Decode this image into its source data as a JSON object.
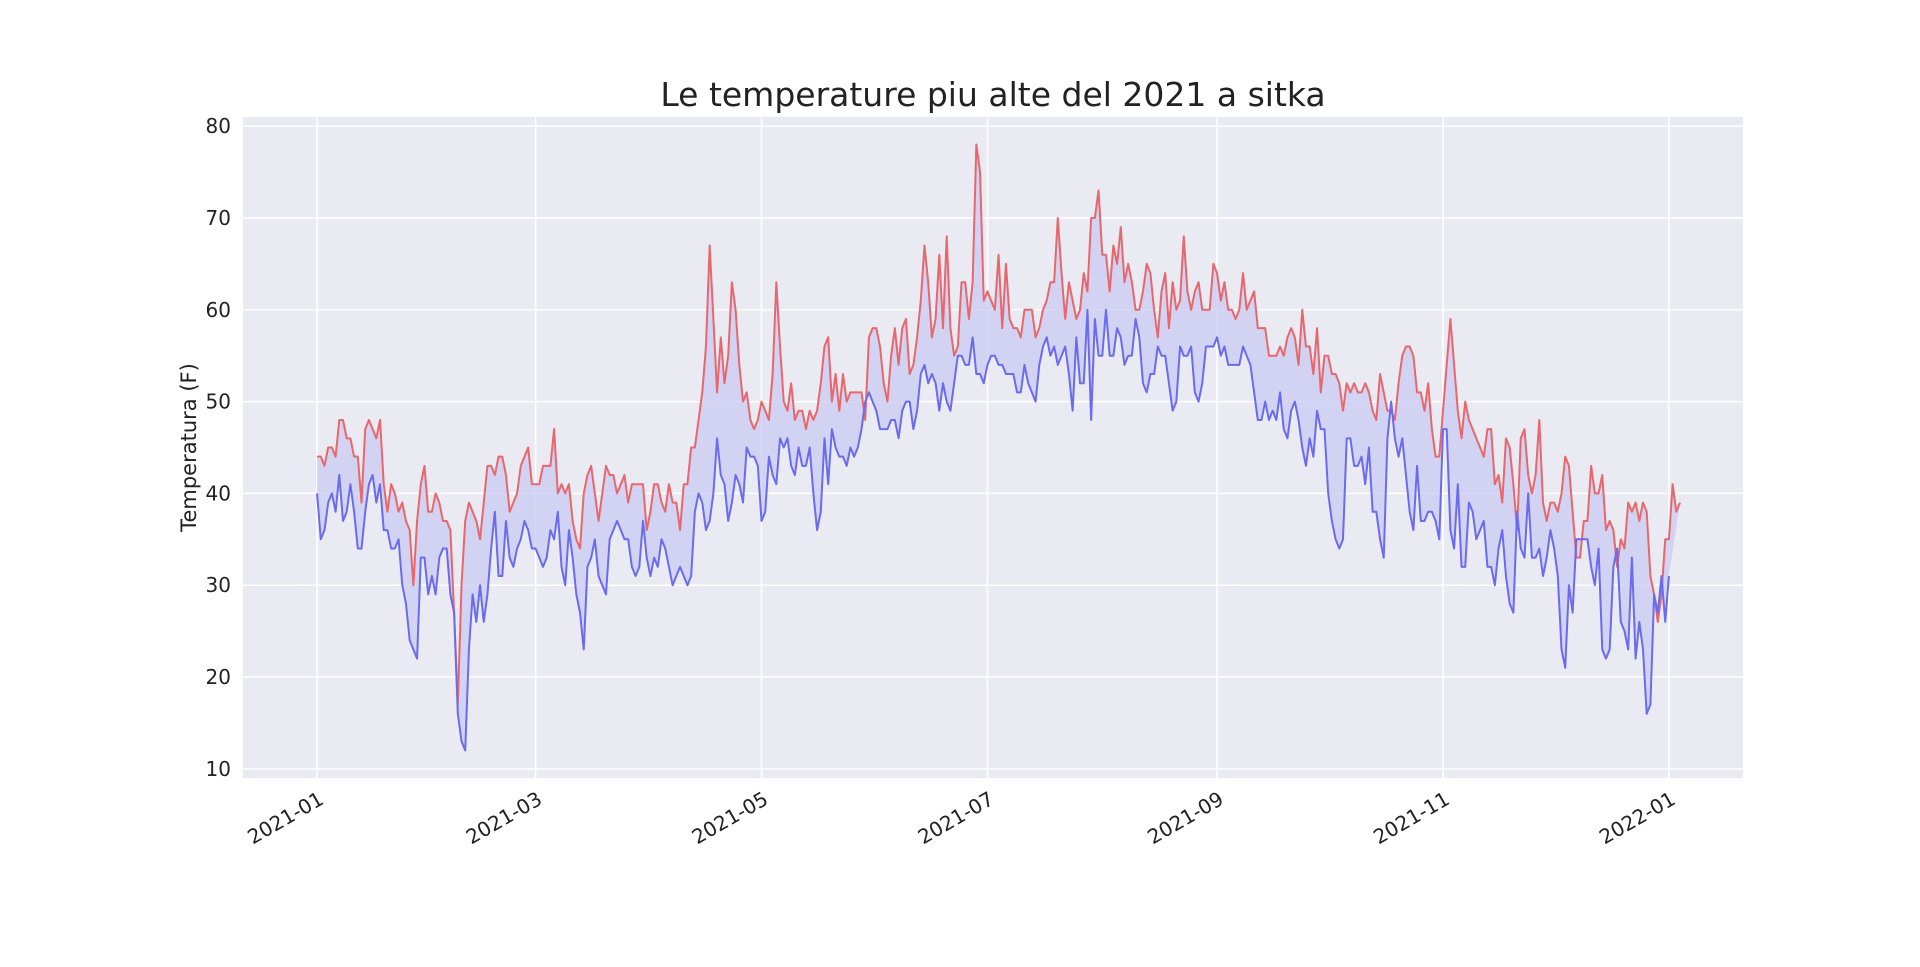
{
  "chart_data": {
    "type": "line",
    "title": "Le temperature piu alte del 2021 a sitka",
    "xlabel": "",
    "ylabel": "Temperatura (F)",
    "ylim": [
      9,
      81
    ],
    "xlim": [
      "2020-12-12",
      "2022-01-21"
    ],
    "x_ticks": [
      "2021-01",
      "2021-03",
      "2021-05",
      "2021-07",
      "2021-09",
      "2021-11",
      "2022-01"
    ],
    "y_ticks": [
      10,
      20,
      30,
      40,
      50,
      60,
      70,
      80
    ],
    "grid": true,
    "fill_between": true,
    "colors": {
      "high": "#e8676d",
      "low": "#6b6bef",
      "fill": "#c9c9f2",
      "plot_bg": "#eaeaf2",
      "grid": "#ffffff"
    },
    "x_start": "2021-01-01",
    "x_end": "2021-12-31",
    "series": [
      {
        "key": "high",
        "values": [
          44,
          44,
          43,
          45,
          45,
          44,
          48,
          48,
          46,
          46,
          44,
          44,
          39,
          47,
          48,
          47,
          46,
          48,
          41,
          38,
          41,
          40,
          38,
          39,
          37,
          36,
          30,
          37,
          41,
          43,
          38,
          38,
          40,
          39,
          37,
          37,
          36,
          27,
          17,
          30,
          37,
          39,
          38,
          37,
          35,
          39,
          43,
          43,
          42,
          44,
          44,
          42,
          38,
          39,
          40,
          43,
          44,
          45,
          41,
          41,
          41,
          43,
          43,
          43,
          47,
          40,
          41,
          40,
          41,
          37,
          35,
          34,
          40,
          42,
          43,
          40,
          37,
          40,
          43,
          42,
          42,
          40,
          41,
          42,
          39,
          41,
          41,
          41,
          41,
          36,
          38,
          41,
          41,
          39,
          38,
          41,
          39,
          39,
          36,
          41,
          41,
          45,
          45,
          48,
          51,
          56,
          67,
          59,
          51,
          57,
          52,
          55,
          63,
          60,
          54,
          50,
          51,
          48,
          47,
          48,
          50,
          49,
          48,
          53,
          63,
          56,
          50,
          49,
          52,
          48,
          49,
          49,
          47,
          49,
          48,
          49,
          52,
          56,
          57,
          50,
          53,
          49,
          53,
          50,
          51,
          51,
          51,
          51,
          48,
          57,
          58,
          58,
          56,
          52,
          50,
          55,
          58,
          54,
          58,
          59,
          53,
          54,
          57,
          61,
          67,
          63,
          57,
          59,
          66,
          58,
          68,
          58,
          55,
          56,
          63,
          63,
          59,
          63,
          78,
          75,
          61,
          62,
          61,
          60,
          66,
          58,
          65,
          59,
          58,
          58,
          57,
          60,
          60,
          60,
          57,
          58,
          60,
          61,
          63,
          63,
          70,
          64,
          59,
          63,
          61,
          59,
          60,
          64,
          62,
          70,
          70,
          73,
          66,
          66,
          62,
          67,
          65,
          69,
          63,
          65,
          63,
          60,
          60,
          62,
          65,
          64,
          60,
          57,
          62,
          64,
          58,
          63,
          60,
          61,
          68,
          62,
          60,
          62,
          63,
          60,
          60,
          60,
          65,
          64,
          61,
          63,
          60,
          60,
          59,
          60,
          64,
          60,
          61,
          62,
          58,
          58,
          58,
          55,
          55,
          55,
          56,
          55,
          57,
          58,
          57,
          54,
          60,
          56,
          56,
          53,
          58,
          51,
          55,
          55,
          53,
          53,
          52,
          49,
          52,
          51,
          52,
          51,
          51,
          52,
          51,
          49,
          48,
          53,
          51,
          49,
          49,
          48,
          52,
          55,
          56,
          56,
          55,
          51,
          51,
          49,
          52,
          47,
          44,
          44,
          49,
          54,
          59,
          54,
          49,
          46,
          50,
          48,
          47,
          46,
          45,
          44,
          47,
          47,
          41,
          42,
          39,
          46,
          45,
          41,
          36,
          46,
          47,
          42,
          40,
          42,
          48,
          39,
          37,
          39,
          39,
          38,
          40,
          44,
          43,
          38,
          33,
          33,
          37,
          37,
          43,
          40,
          40,
          42,
          36,
          37,
          36,
          32,
          35,
          34,
          39,
          38,
          39,
          37,
          39,
          38,
          31,
          29,
          26,
          29,
          35,
          35,
          41,
          38,
          39
        ]
      },
      {
        "key": "low",
        "values": [
          40,
          35,
          36,
          39,
          40,
          38,
          42,
          37,
          38,
          41,
          38,
          34,
          34,
          38,
          41,
          42,
          39,
          41,
          36,
          36,
          34,
          34,
          35,
          30,
          28,
          24,
          23,
          22,
          33,
          33,
          29,
          31,
          29,
          33,
          34,
          34,
          29,
          27,
          16,
          13,
          12,
          23,
          29,
          26,
          30,
          26,
          29,
          34,
          38,
          31,
          31,
          37,
          33,
          32,
          34,
          35,
          37,
          36,
          34,
          34,
          33,
          32,
          33,
          36,
          35,
          38,
          32,
          30,
          36,
          33,
          29,
          27,
          23,
          32,
          33,
          35,
          31,
          30,
          29,
          35,
          36,
          37,
          36,
          35,
          35,
          32,
          31,
          32,
          37,
          33,
          31,
          33,
          32,
          35,
          34,
          32,
          30,
          31,
          32,
          31,
          30,
          31,
          38,
          40,
          39,
          36,
          37,
          40,
          46,
          42,
          41,
          37,
          39,
          42,
          41,
          39,
          45,
          44,
          44,
          43,
          37,
          38,
          44,
          42,
          41,
          46,
          45,
          46,
          43,
          42,
          45,
          43,
          43,
          45,
          40,
          36,
          38,
          46,
          41,
          47,
          45,
          44,
          44,
          43,
          45,
          44,
          45,
          47,
          50,
          51,
          50,
          49,
          47,
          47,
          47,
          48,
          48,
          46,
          49,
          50,
          50,
          47,
          49,
          53,
          54,
          52,
          53,
          52,
          49,
          52,
          50,
          49,
          52,
          55,
          55,
          54,
          54,
          57,
          53,
          53,
          52,
          54,
          55,
          55,
          54,
          54,
          53,
          53,
          53,
          51,
          51,
          54,
          52,
          51,
          50,
          54,
          56,
          57,
          55,
          56,
          54,
          55,
          56,
          53,
          49,
          57,
          52,
          52,
          60,
          48,
          59,
          55,
          55,
          60,
          55,
          55,
          58,
          57,
          54,
          55,
          55,
          59,
          57,
          52,
          51,
          53,
          53,
          56,
          55,
          55,
          52,
          49,
          50,
          56,
          55,
          55,
          56,
          51,
          50,
          52,
          56,
          56,
          56,
          57,
          55,
          56,
          54,
          54,
          54,
          54,
          56,
          55,
          54,
          51,
          48,
          48,
          50,
          48,
          49,
          48,
          51,
          47,
          46,
          49,
          50,
          48,
          45,
          43,
          46,
          44,
          49,
          47,
          47,
          40,
          37,
          35,
          34,
          35,
          46,
          46,
          43,
          43,
          44,
          41,
          45,
          38,
          38,
          35,
          33,
          46,
          50,
          46,
          44,
          46,
          42,
          38,
          36,
          43,
          37,
          37,
          38,
          38,
          37,
          35,
          47,
          47,
          36,
          34,
          41,
          32,
          32,
          39,
          38,
          35,
          36,
          37,
          32,
          32,
          30,
          34,
          36,
          31,
          28,
          27,
          38,
          34,
          33,
          40,
          33,
          33,
          34,
          31,
          33,
          36,
          34,
          31,
          23,
          21,
          30,
          27,
          35,
          35,
          35,
          35,
          32,
          30,
          34,
          23,
          22,
          23,
          32,
          34,
          26,
          25,
          23,
          33,
          22,
          26,
          23,
          16,
          17,
          29,
          27,
          31,
          26,
          31
        ]
      }
    ]
  }
}
